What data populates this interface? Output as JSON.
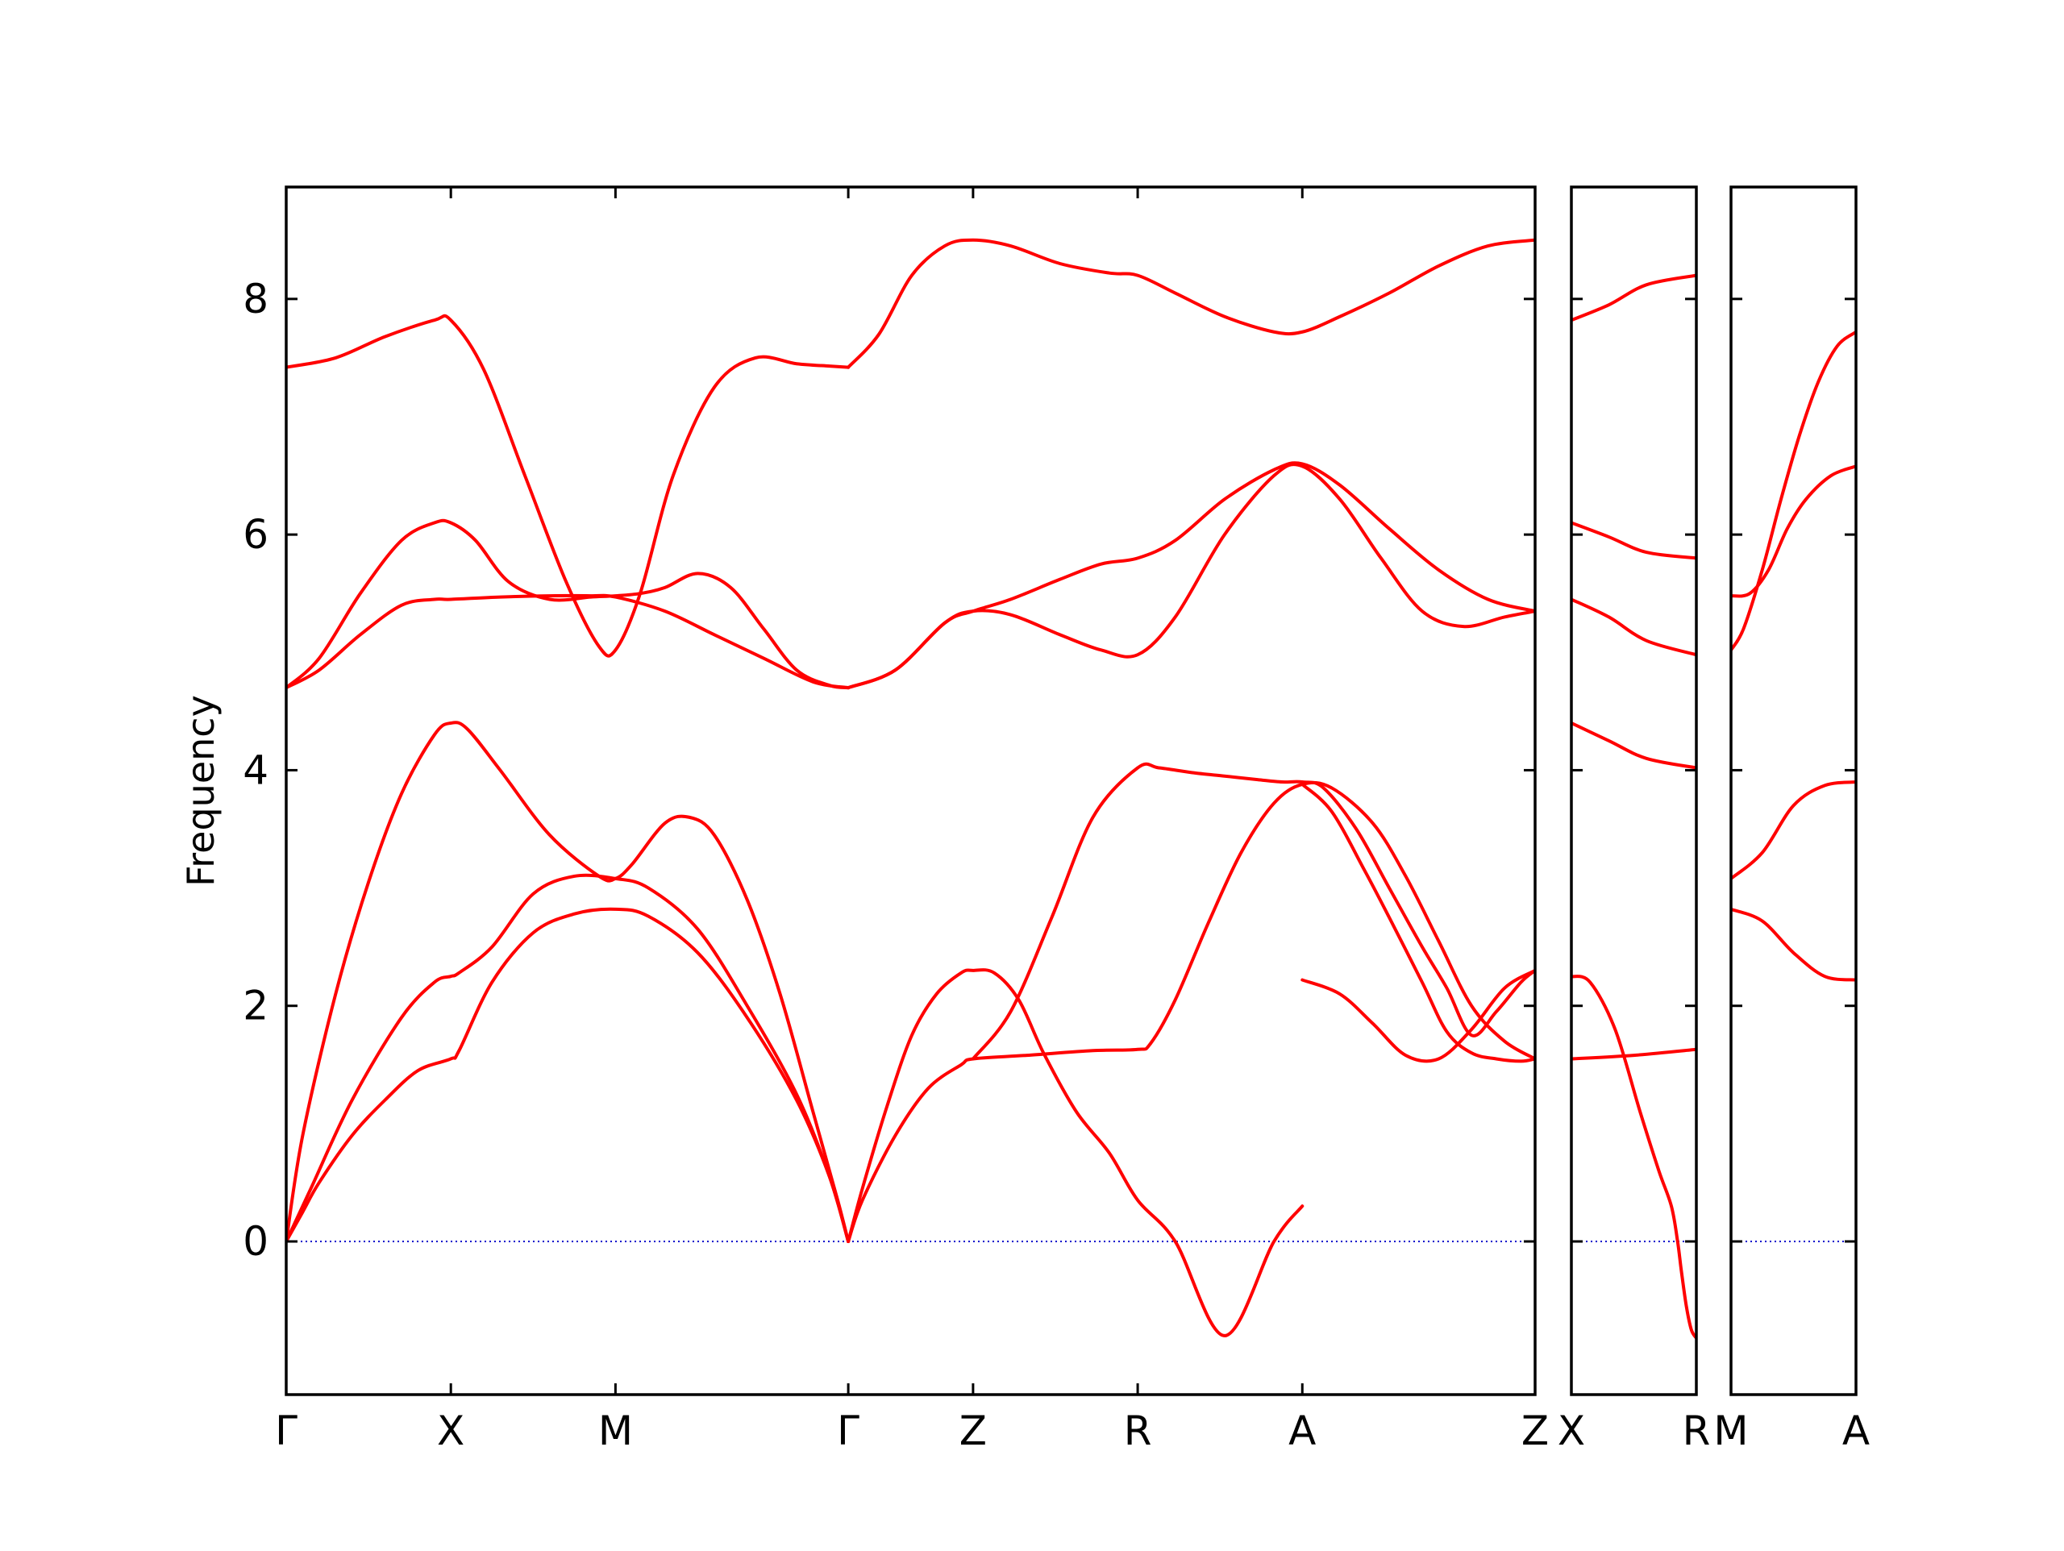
{
  "chart_data": {
    "type": "line",
    "ylabel": "Frequency",
    "xlabel": "",
    "title": "",
    "ylim": [
      -1.3,
      8.95
    ],
    "yticks": [
      0,
      2,
      4,
      6,
      8
    ],
    "ytick_labels": [
      "0",
      "2",
      "4",
      "6",
      "8"
    ],
    "grid": false,
    "colors": {
      "bands": "#ff0000",
      "zero_line": "#0000cc",
      "axes": "#000000"
    },
    "panels": [
      {
        "segments": [
          {
            "from": "Γ",
            "to": "X",
            "x0": 0.0,
            "x1": 1.0
          },
          {
            "from": "X",
            "to": "M",
            "x0": 1.0,
            "x1": 2.0
          },
          {
            "from": "M",
            "to": "Γ",
            "x0": 2.0,
            "x1": 3.414
          },
          {
            "from": "Γ",
            "to": "Z",
            "x0": 3.414,
            "x1": 4.172
          },
          {
            "from": "Z",
            "to": "R",
            "x0": 4.172,
            "x1": 5.172
          },
          {
            "from": "R",
            "to": "A",
            "x0": 5.172,
            "x1": 6.172
          },
          {
            "from": "A",
            "to": "Z",
            "x0": 6.172,
            "x1": 7.586
          }
        ],
        "xticks": [
          0.0,
          1.0,
          2.0,
          3.414,
          4.172,
          5.172,
          6.172,
          7.586
        ],
        "xtick_labels": [
          "Γ",
          "X",
          "M",
          "Γ",
          "Z",
          "R",
          "A",
          "Z"
        ],
        "series": [
          {
            "x": [
              0,
              0.1,
              0.2,
              0.4,
              0.6,
              0.8,
              1.0,
              1.05,
              1.25,
              1.5,
              1.75,
              2.0,
              2.2,
              2.5,
              2.8,
              3.1,
              3.3,
              3.414
            ],
            "y": [
              0,
              0.25,
              0.5,
              0.9,
              1.2,
              1.45,
              1.55,
              1.62,
              2.2,
              2.62,
              2.78,
              2.82,
              2.76,
              2.45,
              1.9,
              1.2,
              0.55,
              0
            ]
          },
          {
            "x": [
              0,
              0.15,
              0.4,
              0.7,
              0.9,
              1.0,
              1.05,
              1.25,
              1.5,
              1.75,
              2.0,
              2.2,
              2.5,
              2.8,
              3.1,
              3.3,
              3.414
            ],
            "y": [
              0,
              0.45,
              1.2,
              1.9,
              2.2,
              2.25,
              2.28,
              2.5,
              2.95,
              3.1,
              3.08,
              3.0,
              2.65,
              2.0,
              1.25,
              0.55,
              0
            ]
          },
          {
            "x": [
              0,
              0.1,
              0.3,
              0.5,
              0.7,
              0.9,
              1.0,
              1.1,
              1.3,
              1.6,
              1.9,
              2.0,
              2.1,
              2.3,
              2.45,
              2.6,
              2.8,
              3.0,
              3.2,
              3.35,
              3.414
            ],
            "y": [
              0,
              0.9,
              2.1,
              3.05,
              3.8,
              4.3,
              4.4,
              4.35,
              4.0,
              3.45,
              3.1,
              3.08,
              3.2,
              3.55,
              3.6,
              3.45,
              2.9,
              2.1,
              1.1,
              0.35,
              0
            ]
          },
          {
            "x": [
              3.414,
              3.5,
              3.7,
              3.9,
              4.1,
              4.172,
              4.5,
              4.9,
              5.172,
              5.25,
              5.4,
              5.6,
              5.8,
              6.0,
              6.172,
              6.35,
              6.6,
              6.8,
              7.0,
              7.2,
              7.4,
              7.586
            ],
            "y": [
              0,
              0.35,
              0.9,
              1.3,
              1.5,
              1.55,
              1.58,
              1.62,
              1.63,
              1.68,
              2.05,
              2.7,
              3.3,
              3.72,
              3.88,
              3.85,
              3.55,
              3.1,
              2.55,
              2.0,
              1.7,
              1.55
            ]
          },
          {
            "x": [
              3.414,
              3.5,
              3.65,
              3.8,
              3.95,
              4.1,
              4.172,
              4.3,
              4.45,
              4.6,
              4.8,
              5.0,
              5.172,
              5.4,
              5.7,
              6.0,
              6.172
            ],
            "y": [
              0,
              0.45,
              1.15,
              1.75,
              2.1,
              2.28,
              2.3,
              2.28,
              2.05,
              1.6,
              1.1,
              0.75,
              0.35,
              0.0,
              -0.8,
              0.0,
              0.3
            ]
          },
          {
            "x": [
              6.172,
              6.35,
              6.55,
              6.7,
              6.9,
              7.05,
              7.2,
              7.35,
              7.5,
              7.586
            ],
            "y": [
              3.88,
              3.65,
              3.15,
              2.75,
              2.2,
              1.78,
              1.6,
              1.55,
              1.53,
              1.55
            ]
          },
          {
            "x": [
              4.172,
              4.4,
              4.65,
              4.9,
              5.172,
              5.3,
              5.5,
              5.7,
              5.9,
              6.05,
              6.172,
              6.3,
              6.5,
              6.7,
              6.9,
              7.05,
              7.2,
              7.35,
              7.5,
              7.586
            ],
            "y": [
              1.55,
              1.95,
              2.75,
              3.6,
              4.02,
              4.02,
              3.98,
              3.95,
              3.92,
              3.9,
              3.9,
              3.85,
              3.5,
              3.0,
              2.5,
              2.15,
              1.75,
              1.95,
              2.2,
              2.3
            ]
          },
          {
            "x": [
              6.172,
              6.4,
              6.6,
              6.8,
              7.0,
              7.2,
              7.4,
              7.586
            ],
            "y": [
              2.22,
              2.1,
              1.85,
              1.58,
              1.55,
              1.8,
              2.15,
              2.3
            ]
          },
          {
            "x": [
              0,
              0.2,
              0.45,
              0.7,
              0.9,
              1.0,
              1.3,
              1.6,
              1.85,
              2.0,
              2.3,
              2.6,
              2.9,
              3.2,
              3.414
            ],
            "y": [
              4.7,
              4.85,
              5.15,
              5.4,
              5.45,
              5.45,
              5.47,
              5.48,
              5.48,
              5.47,
              5.35,
              5.15,
              4.95,
              4.75,
              4.7
            ]
          },
          {
            "x": [
              0,
              0.2,
              0.45,
              0.7,
              0.9,
              1.0,
              1.15,
              1.35,
              1.6,
              1.85,
              2.0,
              2.15,
              2.3,
              2.5,
              2.7,
              2.9,
              3.1,
              3.3,
              3.414
            ],
            "y": [
              4.7,
              4.95,
              5.5,
              5.95,
              6.1,
              6.1,
              5.95,
              5.6,
              5.45,
              5.47,
              5.48,
              5.5,
              5.55,
              5.67,
              5.55,
              5.2,
              4.85,
              4.72,
              4.7
            ]
          },
          {
            "x": [
              0,
              0.3,
              0.6,
              0.9,
              1.0,
              1.2,
              1.45,
              1.7,
              1.9,
              2.0,
              2.15,
              2.35,
              2.6,
              2.85,
              3.1,
              3.3,
              3.414
            ],
            "y": [
              7.42,
              7.5,
              7.68,
              7.82,
              7.82,
              7.4,
              6.5,
              5.6,
              5.05,
              5.02,
              5.5,
              6.5,
              7.25,
              7.5,
              7.45,
              7.43,
              7.42
            ]
          },
          {
            "x": [
              3.414,
              3.7,
              4.0,
              4.172,
              4.4,
              4.7,
              4.95,
              5.172,
              5.4,
              5.7,
              6.0,
              6.172,
              6.4,
              6.65,
              6.9,
              7.15,
              7.4,
              7.586
            ],
            "y": [
              4.7,
              4.85,
              5.25,
              5.35,
              5.32,
              5.15,
              5.02,
              4.98,
              5.3,
              6.0,
              6.5,
              6.58,
              6.3,
              5.8,
              5.35,
              5.22,
              5.3,
              5.35
            ]
          },
          {
            "x": [
              3.414,
              3.7,
              4.0,
              4.172,
              4.4,
              4.7,
              4.95,
              5.172,
              5.4,
              5.7,
              6.0,
              6.172,
              6.4,
              6.7,
              7.0,
              7.3,
              7.586
            ],
            "y": [
              4.7,
              4.85,
              5.25,
              5.35,
              5.45,
              5.62,
              5.75,
              5.8,
              5.95,
              6.3,
              6.55,
              6.6,
              6.42,
              6.05,
              5.7,
              5.45,
              5.35
            ]
          },
          {
            "x": [
              3.414,
              3.6,
              3.8,
              4.0,
              4.172,
              4.4,
              4.7,
              5.0,
              5.172,
              5.4,
              5.7,
              6.0,
              6.172,
              6.4,
              6.7,
              7.0,
              7.3,
              7.586
            ],
            "y": [
              7.42,
              7.7,
              8.2,
              8.45,
              8.5,
              8.45,
              8.3,
              8.22,
              8.2,
              8.05,
              7.85,
              7.72,
              7.72,
              7.85,
              8.05,
              8.28,
              8.45,
              8.5
            ]
          }
        ]
      },
      {
        "segments": [
          {
            "from": "X",
            "to": "R",
            "x0": 0.0,
            "x1": 1.0
          }
        ],
        "xticks": [
          0.0,
          1.0
        ],
        "xtick_labels": [
          "X",
          "R"
        ],
        "series": [
          {
            "x": [
              0,
              0.5,
              1.0
            ],
            "y": [
              1.55,
              1.58,
              1.63
            ]
          },
          {
            "x": [
              0,
              0.15,
              0.35,
              0.55,
              0.7,
              0.8,
              0.85,
              0.88,
              0.92,
              0.96,
              1.0
            ],
            "y": [
              2.25,
              2.2,
              1.8,
              1.1,
              0.6,
              0.3,
              0.0,
              -0.25,
              -0.55,
              -0.75,
              -0.82
            ]
          },
          {
            "x": [
              0,
              0.3,
              0.6,
              1.0
            ],
            "y": [
              4.4,
              4.25,
              4.1,
              4.02
            ]
          },
          {
            "x": [
              0,
              0.3,
              0.6,
              1.0
            ],
            "y": [
              5.45,
              5.3,
              5.1,
              4.98
            ]
          },
          {
            "x": [
              0,
              0.3,
              0.6,
              1.0
            ],
            "y": [
              6.1,
              5.98,
              5.85,
              5.8
            ]
          },
          {
            "x": [
              0,
              0.3,
              0.6,
              1.0
            ],
            "y": [
              7.82,
              7.95,
              8.12,
              8.2
            ]
          }
        ]
      },
      {
        "segments": [
          {
            "from": "M",
            "to": "A",
            "x0": 0.0,
            "x1": 1.0
          }
        ],
        "xticks": [
          0.0,
          1.0
        ],
        "xtick_labels": [
          "M",
          "A"
        ],
        "series": [
          {
            "x": [
              0,
              0.25,
              0.5,
              0.75,
              1.0
            ],
            "y": [
              2.82,
              2.72,
              2.45,
              2.25,
              2.22
            ]
          },
          {
            "x": [
              0,
              0.25,
              0.5,
              0.75,
              1.0
            ],
            "y": [
              3.08,
              3.3,
              3.7,
              3.87,
              3.9
            ]
          },
          {
            "x": [
              0,
              0.15,
              0.3,
              0.45,
              0.6,
              0.8,
              1.0
            ],
            "y": [
              5.48,
              5.5,
              5.7,
              6.05,
              6.3,
              6.5,
              6.58
            ]
          },
          {
            "x": [
              0,
              0.1,
              0.25,
              0.4,
              0.55,
              0.7,
              0.85,
              1.0
            ],
            "y": [
              5.02,
              5.2,
              5.7,
              6.3,
              6.85,
              7.3,
              7.6,
              7.72
            ]
          }
        ]
      }
    ]
  }
}
